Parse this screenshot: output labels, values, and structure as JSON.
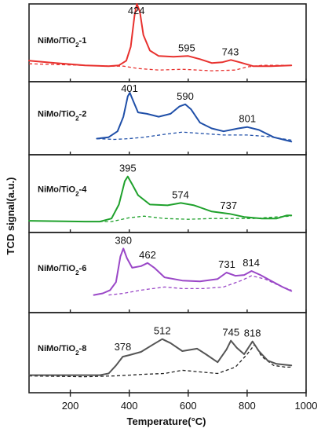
{
  "chart_data": {
    "type": "line",
    "xlabel": "Temperature(°C)",
    "ylabel": "TCD signal(a.u.)",
    "xlim": [
      60,
      1000
    ],
    "x_ticks": [
      200,
      400,
      600,
      800,
      1000
    ],
    "y_ticks": "none",
    "grid": false,
    "legend": "none",
    "panels": [
      {
        "label_main": "NiMo/TiO",
        "label_sub": "2",
        "label_suffix": "-1",
        "color": "#e8312e",
        "peaks": [
          424,
          595,
          743
        ],
        "solid": [
          [
            60,
            0.27
          ],
          [
            150,
            0.24
          ],
          [
            250,
            0.21
          ],
          [
            330,
            0.2
          ],
          [
            365,
            0.21
          ],
          [
            390,
            0.27
          ],
          [
            405,
            0.45
          ],
          [
            418,
            0.85
          ],
          [
            426,
            1.0
          ],
          [
            436,
            0.9
          ],
          [
            448,
            0.6
          ],
          [
            470,
            0.4
          ],
          [
            500,
            0.33
          ],
          [
            550,
            0.32
          ],
          [
            600,
            0.33
          ],
          [
            640,
            0.29
          ],
          [
            680,
            0.24
          ],
          [
            715,
            0.25
          ],
          [
            745,
            0.28
          ],
          [
            775,
            0.25
          ],
          [
            820,
            0.2
          ],
          [
            880,
            0.2
          ],
          [
            950,
            0.21
          ]
        ],
        "dashed": [
          [
            60,
            0.23
          ],
          [
            250,
            0.21
          ],
          [
            330,
            0.2
          ],
          [
            380,
            0.2
          ],
          [
            430,
            0.17
          ],
          [
            500,
            0.15
          ],
          [
            580,
            0.16
          ],
          [
            680,
            0.14
          ],
          [
            760,
            0.15
          ],
          [
            800,
            0.19
          ],
          [
            850,
            0.21
          ],
          [
            950,
            0.21
          ]
        ]
      },
      {
        "label_main": "NiMo/TiO",
        "label_sub": "2",
        "label_suffix": "-2",
        "color": "#1f4fa8",
        "peaks": [
          401,
          590,
          801
        ],
        "solid": [
          [
            290,
            0.22
          ],
          [
            330,
            0.24
          ],
          [
            360,
            0.32
          ],
          [
            380,
            0.52
          ],
          [
            395,
            0.8
          ],
          [
            402,
            0.85
          ],
          [
            412,
            0.75
          ],
          [
            430,
            0.58
          ],
          [
            460,
            0.56
          ],
          [
            500,
            0.52
          ],
          [
            540,
            0.56
          ],
          [
            570,
            0.66
          ],
          [
            590,
            0.69
          ],
          [
            610,
            0.62
          ],
          [
            640,
            0.44
          ],
          [
            680,
            0.36
          ],
          [
            720,
            0.32
          ],
          [
            770,
            0.36
          ],
          [
            800,
            0.38
          ],
          [
            840,
            0.34
          ],
          [
            890,
            0.24
          ],
          [
            930,
            0.2
          ],
          [
            950,
            0.18
          ]
        ],
        "dashed": [
          [
            290,
            0.22
          ],
          [
            350,
            0.21
          ],
          [
            400,
            0.22
          ],
          [
            450,
            0.24
          ],
          [
            520,
            0.28
          ],
          [
            580,
            0.31
          ],
          [
            650,
            0.29
          ],
          [
            720,
            0.27
          ],
          [
            800,
            0.27
          ],
          [
            870,
            0.25
          ],
          [
            950,
            0.2
          ]
        ]
      },
      {
        "label_main": "NiMo/TiO",
        "label_sub": "2",
        "label_suffix": "-4",
        "color": "#1fa12c",
        "peaks": [
          395,
          574,
          737
        ],
        "solid": [
          [
            60,
            0.15
          ],
          [
            250,
            0.14
          ],
          [
            300,
            0.14
          ],
          [
            340,
            0.18
          ],
          [
            365,
            0.36
          ],
          [
            385,
            0.66
          ],
          [
            395,
            0.72
          ],
          [
            410,
            0.62
          ],
          [
            430,
            0.48
          ],
          [
            470,
            0.36
          ],
          [
            530,
            0.35
          ],
          [
            575,
            0.38
          ],
          [
            620,
            0.35
          ],
          [
            680,
            0.27
          ],
          [
            740,
            0.24
          ],
          [
            790,
            0.2
          ],
          [
            850,
            0.18
          ],
          [
            900,
            0.18
          ],
          [
            935,
            0.22
          ],
          [
            950,
            0.22
          ]
        ],
        "dashed": [
          [
            280,
            0.14
          ],
          [
            340,
            0.14
          ],
          [
            400,
            0.19
          ],
          [
            450,
            0.21
          ],
          [
            520,
            0.18
          ],
          [
            600,
            0.17
          ],
          [
            680,
            0.18
          ],
          [
            750,
            0.18
          ],
          [
            820,
            0.18
          ],
          [
            900,
            0.2
          ],
          [
            950,
            0.21
          ]
        ]
      },
      {
        "label_main": "NiMo/TiO",
        "label_sub": "2",
        "label_suffix": "-6",
        "color": "#9a47c7",
        "peaks": [
          380,
          462,
          731,
          814
        ],
        "solid": [
          [
            280,
            0.22
          ],
          [
            310,
            0.24
          ],
          [
            335,
            0.28
          ],
          [
            355,
            0.38
          ],
          [
            370,
            0.7
          ],
          [
            380,
            0.8
          ],
          [
            392,
            0.68
          ],
          [
            410,
            0.56
          ],
          [
            440,
            0.58
          ],
          [
            462,
            0.62
          ],
          [
            485,
            0.56
          ],
          [
            520,
            0.44
          ],
          [
            580,
            0.4
          ],
          [
            640,
            0.39
          ],
          [
            700,
            0.42
          ],
          [
            730,
            0.5
          ],
          [
            760,
            0.46
          ],
          [
            790,
            0.47
          ],
          [
            815,
            0.52
          ],
          [
            845,
            0.47
          ],
          [
            880,
            0.4
          ],
          [
            920,
            0.32
          ],
          [
            950,
            0.27
          ]
        ],
        "dashed": [
          [
            330,
            0.22
          ],
          [
            380,
            0.24
          ],
          [
            440,
            0.28
          ],
          [
            520,
            0.32
          ],
          [
            580,
            0.3
          ],
          [
            650,
            0.3
          ],
          [
            720,
            0.32
          ],
          [
            780,
            0.4
          ],
          [
            815,
            0.46
          ],
          [
            860,
            0.42
          ],
          [
            920,
            0.32
          ],
          [
            950,
            0.28
          ]
        ]
      },
      {
        "label_main": "NiMo/TiO",
        "label_sub": "2",
        "label_suffix": "-8",
        "color": "#555555",
        "dashed_color": "#222222",
        "peaks": [
          378,
          512,
          745,
          818
        ],
        "solid": [
          [
            60,
            0.22
          ],
          [
            200,
            0.22
          ],
          [
            300,
            0.22
          ],
          [
            330,
            0.24
          ],
          [
            355,
            0.34
          ],
          [
            378,
            0.45
          ],
          [
            400,
            0.47
          ],
          [
            440,
            0.51
          ],
          [
            480,
            0.6
          ],
          [
            512,
            0.67
          ],
          [
            540,
            0.62
          ],
          [
            580,
            0.52
          ],
          [
            630,
            0.55
          ],
          [
            660,
            0.48
          ],
          [
            700,
            0.38
          ],
          [
            730,
            0.54
          ],
          [
            745,
            0.65
          ],
          [
            765,
            0.56
          ],
          [
            790,
            0.48
          ],
          [
            818,
            0.64
          ],
          [
            840,
            0.52
          ],
          [
            870,
            0.4
          ],
          [
            900,
            0.36
          ],
          [
            950,
            0.34
          ]
        ],
        "dashed": [
          [
            60,
            0.21
          ],
          [
            250,
            0.2
          ],
          [
            350,
            0.21
          ],
          [
            400,
            0.22
          ],
          [
            450,
            0.23
          ],
          [
            520,
            0.24
          ],
          [
            580,
            0.28
          ],
          [
            640,
            0.26
          ],
          [
            700,
            0.24
          ],
          [
            760,
            0.32
          ],
          [
            800,
            0.48
          ],
          [
            825,
            0.6
          ],
          [
            850,
            0.45
          ],
          [
            890,
            0.34
          ],
          [
            930,
            0.32
          ],
          [
            950,
            0.32
          ]
        ]
      }
    ]
  }
}
